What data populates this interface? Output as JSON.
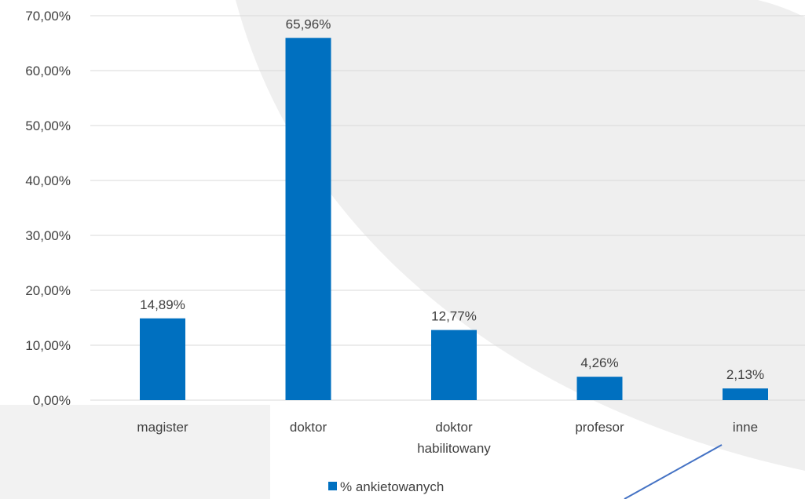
{
  "chart_data": {
    "type": "bar",
    "categories": [
      [
        "magister"
      ],
      [
        "doktor"
      ],
      [
        "doktor",
        "habilitowany"
      ],
      [
        "profesor"
      ],
      [
        "inne"
      ]
    ],
    "series": [
      {
        "name": "% ankietowanych",
        "values": [
          14.89,
          65.96,
          12.77,
          4.26,
          2.13
        ],
        "labels": [
          "14,89%",
          "65,96%",
          "12,77%",
          "4,26%",
          "2,13%"
        ]
      }
    ],
    "ylim": [
      0,
      70
    ],
    "yticks": [
      "0,00%",
      "10,00%",
      "20,00%",
      "30,00%",
      "40,00%",
      "50,00%",
      "60,00%",
      "70,00%"
    ],
    "grid": true,
    "legend_position": "bottom",
    "colors": {
      "bar": "#0070C0",
      "grid": "#D9D9D9",
      "text": "#404040",
      "background_shape": "#EFEFEF",
      "panel": "#F2F2F2",
      "decor_line": "#4472C4"
    }
  }
}
